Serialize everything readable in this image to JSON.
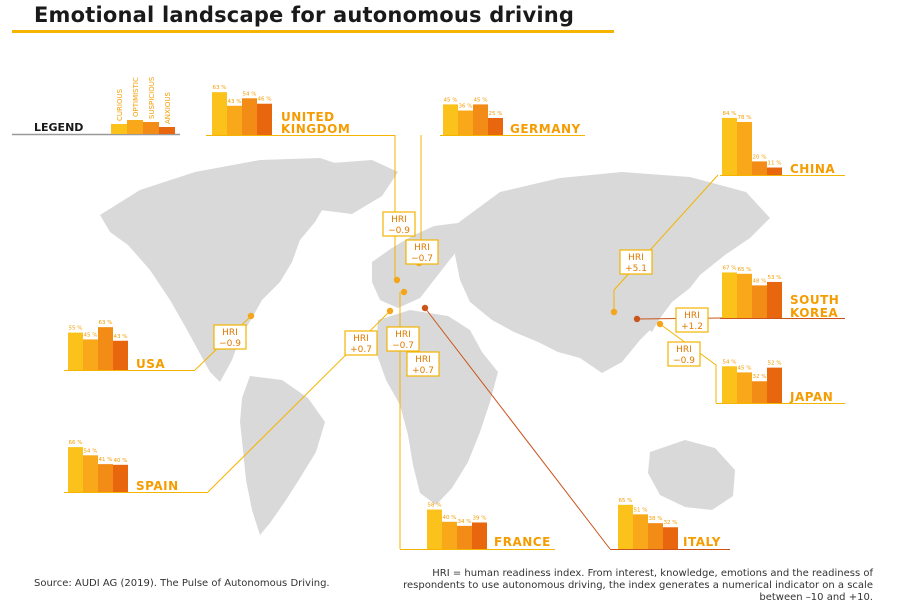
{
  "title": "Emotional landscape for autonomous driving",
  "source": "Source: AUDI AG (2019). The Pulse of Autonomous Driving.",
  "footnote": "HRI = human readiness index. From interest, knowledge, emotions and the readiness of respondents to use autonomous driving, the index generates a numerical indicator on a scale between –10 and +10.",
  "colors": {
    "bars": [
      "#fcc21c",
      "#f9a81a",
      "#f28c16",
      "#e8670e"
    ],
    "label": "#f59c00",
    "hri_border": "#f4b400",
    "hri_text": "#e07a00",
    "leader": "#f4b400",
    "leader_dark": "#c9551c",
    "map": "#d9d9d9",
    "dot": "#f4a51c",
    "legend_rule": "#999999"
  },
  "legend": {
    "label": "LEGEND",
    "emotions": [
      "CURIOUS",
      "OPTIMISTIC",
      "SUSPICIOUS",
      "ANXIOUS"
    ]
  },
  "chart_data": {
    "type": "bar",
    "unit": "%",
    "categories": [
      "CURIOUS",
      "OPTIMISTIC",
      "SUSPICIOUS",
      "ANXIOUS"
    ],
    "countries": [
      {
        "name": [
          "UNITED",
          "KINGDOM"
        ],
        "values": [
          63,
          43,
          54,
          46
        ],
        "value_labels": [
          "63 %",
          "43 %",
          "54 %",
          "46 %"
        ],
        "hri": "−0.9"
      },
      {
        "name": [
          "GERMANY"
        ],
        "values": [
          45,
          36,
          45,
          25
        ],
        "value_labels": [
          "45 %",
          "36 %",
          "45 %",
          "25 %"
        ],
        "hri": "−0.7"
      },
      {
        "name": [
          "CHINA"
        ],
        "values": [
          84,
          78,
          20,
          11
        ],
        "value_labels": [
          "84 %",
          "78 %",
          "20 %",
          "11 %"
        ],
        "hri": "+5.1"
      },
      {
        "name": [
          "SOUTH",
          "KOREA"
        ],
        "values": [
          67,
          65,
          48,
          53
        ],
        "value_labels": [
          "67 %",
          "65 %",
          "48 %",
          "53 %"
        ],
        "hri": "+1.2"
      },
      {
        "name": [
          "JAPAN"
        ],
        "values": [
          54,
          45,
          32,
          52
        ],
        "value_labels": [
          "54 %",
          "45 %",
          "32 %",
          "52 %"
        ],
        "hri": "−0.9"
      },
      {
        "name": [
          "USA"
        ],
        "values": [
          55,
          45,
          63,
          43
        ],
        "value_labels": [
          "55 %",
          "45 %",
          "63 %",
          "43 %"
        ],
        "hri": "−0.9"
      },
      {
        "name": [
          "SPAIN"
        ],
        "values": [
          66,
          54,
          41,
          40
        ],
        "value_labels": [
          "66 %",
          "54 %",
          "41 %",
          "40 %"
        ],
        "hri": "+0.7"
      },
      {
        "name": [
          "FRANCE"
        ],
        "values": [
          58,
          40,
          34,
          39
        ],
        "value_labels": [
          "58 %",
          "40 %",
          "34 %",
          "39 %"
        ],
        "hri": "−0.7"
      },
      {
        "name": [
          "ITALY"
        ],
        "values": [
          65,
          51,
          38,
          32
        ],
        "value_labels": [
          "65 %",
          "51 %",
          "38 %",
          "32 %"
        ],
        "hri": "+0.7"
      }
    ]
  }
}
